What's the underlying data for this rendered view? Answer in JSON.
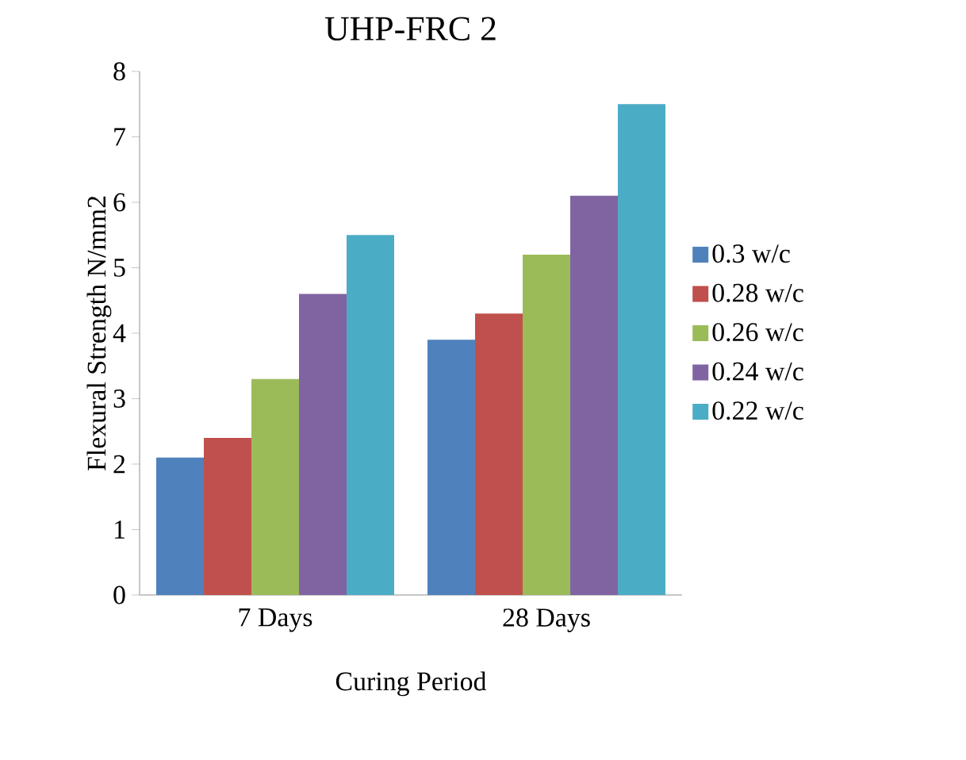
{
  "chart_data": {
    "type": "bar",
    "title": "UHP-FRC 2",
    "xlabel": "Curing Period",
    "ylabel": "Flexural Strength N/mm2",
    "categories": [
      "7 Days",
      "28 Days"
    ],
    "series": [
      {
        "name": "0.3 w/c",
        "color": "#4f81bd",
        "values": [
          2.1,
          3.9
        ]
      },
      {
        "name": "0.28 w/c",
        "color": "#c0504d",
        "values": [
          2.4,
          4.3
        ]
      },
      {
        "name": "0.26 w/c",
        "color": "#9bbb59",
        "values": [
          3.3,
          5.2
        ]
      },
      {
        "name": "0.24 w/c",
        "color": "#8064a2",
        "values": [
          4.6,
          6.1
        ]
      },
      {
        "name": "0.22 w/c",
        "color": "#4bacc6",
        "values": [
          5.5,
          7.5
        ]
      }
    ],
    "ylim": [
      0,
      8
    ],
    "yticks": [
      0,
      1,
      2,
      3,
      4,
      5,
      6,
      7,
      8
    ],
    "legend": "right",
    "grid": false
  }
}
